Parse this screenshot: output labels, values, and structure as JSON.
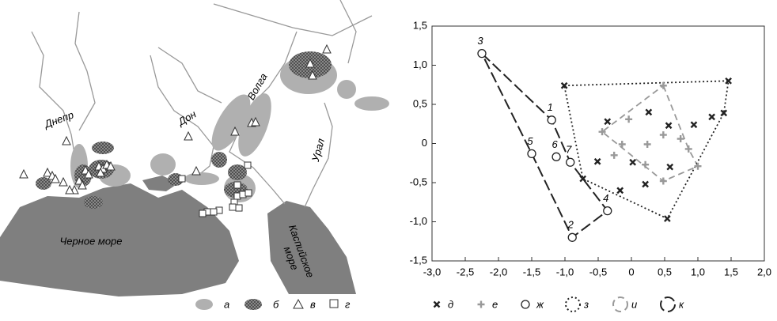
{
  "map": {
    "rivers": [
      "Днепр",
      "Дон",
      "Волга",
      "Урал"
    ],
    "black_sea": "Черное море",
    "caspian": [
      "Каспийское",
      "море"
    ],
    "legend": [
      "а",
      "б",
      "в",
      "г"
    ]
  },
  "chart_data": {
    "type": "scatter",
    "xlim": [
      -3,
      2
    ],
    "ylim": [
      -1.5,
      1.5
    ],
    "xticks": [
      {
        "value": -3,
        "label": "-3,0"
      },
      {
        "value": -2.5,
        "label": "-2,5"
      },
      {
        "value": -2,
        "label": "-2,0"
      },
      {
        "value": -1.5,
        "label": "-1,5"
      },
      {
        "value": -1,
        "label": "-1,0"
      },
      {
        "value": -0.5,
        "label": "-0,5"
      },
      0,
      {
        "value": 0.5,
        "label": "0,5"
      },
      {
        "value": 1,
        "label": "1,0"
      },
      {
        "value": 1.5,
        "label": "1,5"
      },
      {
        "value": 2,
        "label": "2,0"
      }
    ],
    "yticks": [
      {
        "value": -1.5,
        "label": "-1,5"
      },
      {
        "value": -1,
        "label": "-1,0"
      },
      {
        "value": -0.5,
        "label": "-0,5"
      },
      0,
      {
        "value": 0.5,
        "label": "0,5"
      },
      {
        "value": 1,
        "label": "1,0"
      },
      {
        "value": 1.5,
        "label": "1,5"
      }
    ],
    "series": [
      {
        "name": "д",
        "marker": "x",
        "color": "#222222",
        "x": [
          -1.01,
          1.46,
          -0.36,
          0.26,
          0.56,
          0.94,
          1.21,
          1.39,
          -0.51,
          0.02,
          0.58,
          -0.17,
          0.21,
          -0.73,
          0.54
        ],
        "values": [
          0.74,
          0.8,
          0.28,
          0.4,
          0.23,
          0.24,
          0.34,
          0.39,
          -0.23,
          -0.24,
          -0.3,
          -0.6,
          -0.52,
          -0.45,
          -0.96
        ]
      },
      {
        "name": "е",
        "marker": "plus",
        "color": "#999999",
        "x": [
          0.48,
          -0.04,
          -0.44,
          -0.14,
          0.24,
          0.74,
          0.48,
          0.86,
          -0.26,
          0.21,
          1.0,
          0.48
        ],
        "values": [
          0.74,
          0.31,
          0.15,
          -0.01,
          -0.01,
          0.06,
          0.11,
          -0.07,
          -0.15,
          -0.27,
          -0.29,
          -0.48
        ]
      },
      {
        "name": "ж",
        "marker": "circle",
        "color": "#222222",
        "x": [
          -1.2,
          -0.89,
          -2.25,
          -0.36,
          -1.5,
          -1.13,
          -0.92
        ],
        "values": [
          0.3,
          -1.2,
          1.15,
          -0.86,
          -0.13,
          -0.17,
          -0.24
        ],
        "labels": [
          "1",
          "2",
          "3",
          "4",
          "5",
          "6",
          "7"
        ]
      },
      {
        "name": "з",
        "marker": "polygon",
        "dash": "2,3",
        "color": "#222222",
        "x": [
          -1.01,
          1.46,
          1.39,
          0.54,
          -0.73
        ],
        "values": [
          0.74,
          0.8,
          0.39,
          -0.96,
          -0.45
        ]
      },
      {
        "name": "и",
        "marker": "polygon",
        "dash": "8,5",
        "color": "#999999",
        "x": [
          0.48,
          0.86,
          1.0,
          0.48,
          -0.44
        ],
        "values": [
          0.74,
          -0.07,
          -0.29,
          -0.48,
          0.15
        ]
      },
      {
        "name": "к",
        "marker": "polygon",
        "dash": "14,5",
        "color": "#222222",
        "x": [
          -2.25,
          -1.2,
          -0.92,
          -0.36,
          -0.89,
          -1.5
        ],
        "values": [
          1.15,
          0.3,
          -0.24,
          -0.86,
          -1.2,
          -0.13
        ]
      }
    ]
  }
}
